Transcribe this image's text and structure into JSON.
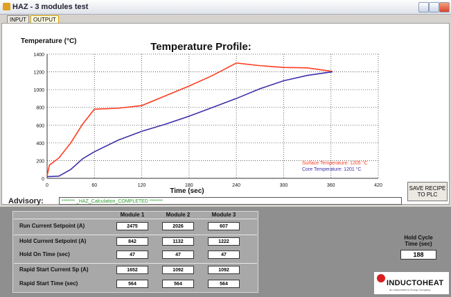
{
  "window": {
    "title": "HAZ - 3 modules test"
  },
  "tabs": [
    "INPUT",
    "OUTPUT"
  ],
  "chart_data": {
    "type": "line",
    "title": "Temperature Profile:",
    "y_label": "Temperature (°C)",
    "x_label": "Time (sec)",
    "x": [
      0,
      3,
      15,
      30,
      45,
      60,
      90,
      120,
      150,
      180,
      210,
      240,
      270,
      300,
      330,
      362
    ],
    "xlim": [
      0,
      420
    ],
    "xticks": [
      0,
      60,
      120,
      180,
      240,
      300,
      360,
      420
    ],
    "ylim": [
      0,
      1400
    ],
    "yticks": [
      0,
      200,
      400,
      600,
      800,
      1000,
      1200,
      1400
    ],
    "grid": true,
    "series": [
      {
        "name": "Surface Temperature: 1205 °C",
        "color": "#ff3b1f",
        "values": [
          30,
          150,
          230,
          400,
          610,
          780,
          790,
          820,
          930,
          1040,
          1160,
          1300,
          1270,
          1250,
          1245,
          1205
        ]
      },
      {
        "name": "Core Temperature: 1201 °C",
        "color": "#3c2fa8",
        "values": [
          20,
          20,
          25,
          100,
          220,
          300,
          430,
          530,
          610,
          700,
          800,
          900,
          1010,
          1100,
          1160,
          1201
        ]
      }
    ]
  },
  "advisory": {
    "label": "Advisory:",
    "text": "******* _HAZ_Calculation_COMPLETED *******"
  },
  "button": "SAVE RECIPE TO PLC",
  "table": {
    "columns": [
      "Module 1",
      "Module 2",
      "Module 3"
    ],
    "rows": [
      {
        "label": "Run Current Setpoint (A)",
        "values": [
          2475,
          2026,
          607
        ]
      },
      {
        "label": "Hold Current Setpoint (A)",
        "values": [
          842,
          1132,
          1222
        ]
      },
      {
        "label": "Hold On Time (sec)",
        "values": [
          47,
          47,
          47
        ]
      },
      {
        "label": "Rapid Start Current Sp (A)",
        "values": [
          1652,
          1092,
          1092
        ]
      },
      {
        "label": "Rapid Start Time (sec)",
        "values": [
          564,
          564,
          564
        ]
      }
    ]
  },
  "hold_cycle": {
    "label": "Hold Cycle Time (sec)",
    "value": 188
  },
  "logo": {
    "name": "INDUCTOHEAT",
    "tagline": "an Inductotherm Group Company"
  }
}
